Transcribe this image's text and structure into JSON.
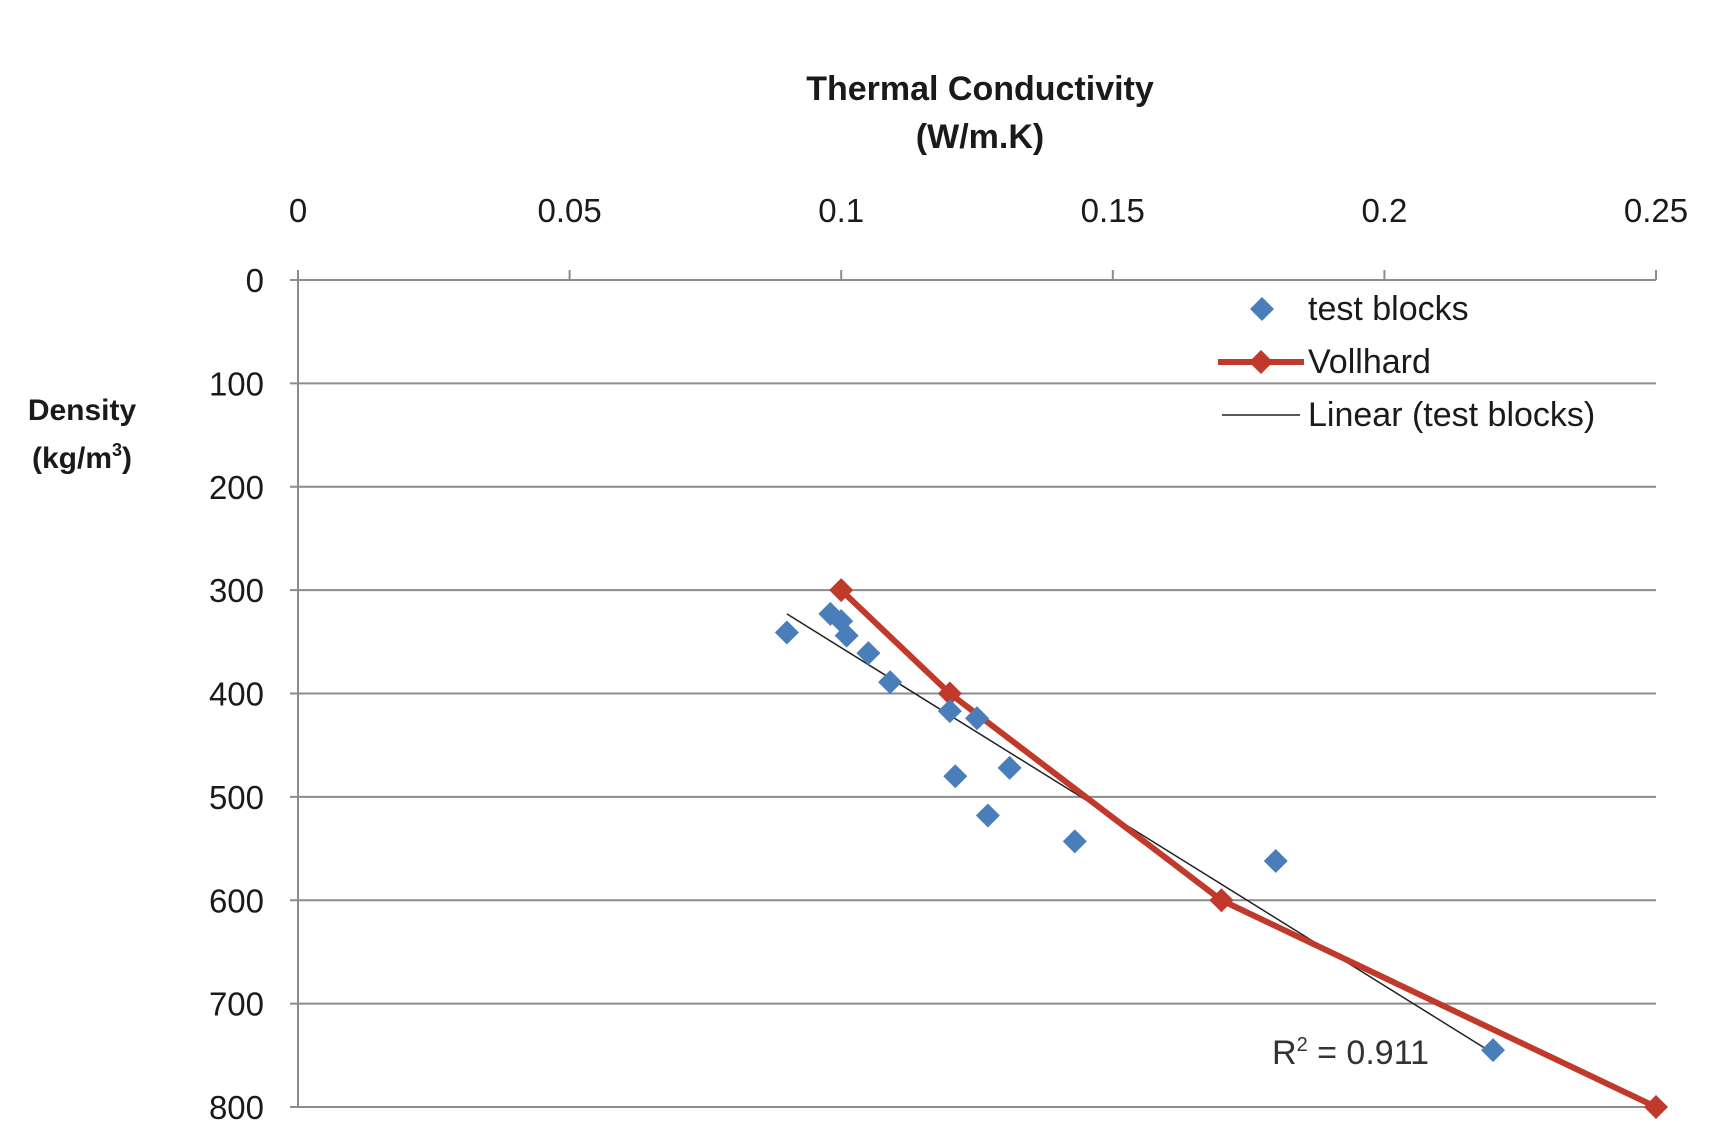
{
  "chart_data": {
    "type": "scatter",
    "title_line1": "Thermal Conductivity",
    "title_line2": "(W/m.K)",
    "xlabel": "Thermal Conductivity (W/m.K)",
    "ylabel_line1": "Density",
    "ylabel_line2": "(kg/m",
    "ylabel_sup": "3",
    "ylabel_close": ")",
    "xlim": [
      0,
      0.25
    ],
    "ylim": [
      0,
      800
    ],
    "y_inverted": true,
    "x_axis_position": "top",
    "x_ticks": [
      "0",
      "0.05",
      "0.1",
      "0.15",
      "0.2",
      "0.25"
    ],
    "y_ticks": [
      "0",
      "100",
      "200",
      "300",
      "400",
      "500",
      "600",
      "700",
      "800"
    ],
    "grid": "horizontal",
    "legend_position": "top-right",
    "series": [
      {
        "name": "test blocks",
        "kind": "scatter",
        "color": "#4a7ebb",
        "marker": "diamond",
        "points": [
          [
            0.09,
            341
          ],
          [
            0.098,
            323
          ],
          [
            0.1,
            330
          ],
          [
            0.101,
            344
          ],
          [
            0.105,
            361
          ],
          [
            0.109,
            389
          ],
          [
            0.12,
            417
          ],
          [
            0.121,
            480
          ],
          [
            0.125,
            424
          ],
          [
            0.127,
            518
          ],
          [
            0.131,
            472
          ],
          [
            0.143,
            543
          ],
          [
            0.18,
            562
          ],
          [
            0.22,
            745
          ]
        ]
      },
      {
        "name": "Vollhard",
        "kind": "line",
        "color": "#c0392b",
        "marker": "diamond",
        "points": [
          [
            0.1,
            300
          ],
          [
            0.12,
            400
          ],
          [
            0.17,
            600
          ],
          [
            0.25,
            800
          ]
        ]
      },
      {
        "name": "Linear (test blocks)",
        "kind": "trendline",
        "color": "#222222",
        "points": [
          [
            0.09,
            323
          ],
          [
            0.22,
            748
          ]
        ]
      }
    ],
    "annotation": {
      "text_prefix": "R",
      "text_sup": "2",
      "text_suffix": " = 0.911"
    }
  }
}
